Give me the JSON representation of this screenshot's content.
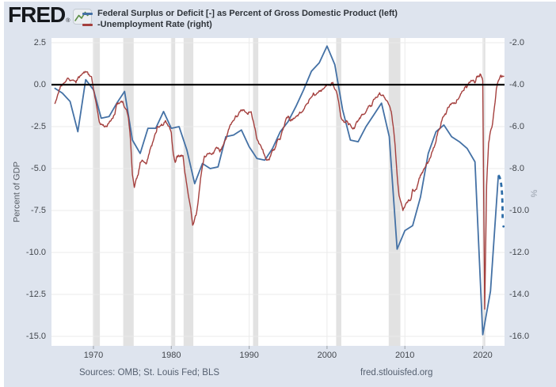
{
  "header": {
    "logo_text": "FRED",
    "logo_registered": "®",
    "logo_icon": "fred-sparkline-icon",
    "legend": [
      {
        "label": "Federal Surplus or Deficit [-] as Percent of Gross Domestic Product (left)",
        "color": "#4471a5"
      },
      {
        "label": "-Unemployment Rate (right)",
        "color": "#a43f3d"
      }
    ]
  },
  "footer": {
    "sources": "Sources: OMB; St. Louis Fed; BLS",
    "site": "fred.stlouisfed.org"
  },
  "chart_data": {
    "type": "line",
    "title": "",
    "legend_position": "top",
    "grid": true,
    "colors": {
      "background": "#dee4ee",
      "plot_background": "#ffffff",
      "recession_band": "#e2e2e2",
      "gridline": "#ebebeb",
      "axis_tick": "#9aa0a8",
      "zero_line": "#000000"
    },
    "x_axis": {
      "tick_labels": [
        "1970",
        "1980",
        "1990",
        "2000",
        "2010",
        "2020"
      ],
      "range_years": [
        1964.6,
        2022.8
      ]
    },
    "left_axis": {
      "label": "Percent of GDP",
      "tick_labels": [
        "2.5",
        "0.0",
        "-2.5",
        "-5.0",
        "-7.5",
        "-10.0",
        "-12.5",
        "-15.0"
      ],
      "range": [
        2.8,
        -15.6
      ]
    },
    "right_axis": {
      "label": "%",
      "tick_labels": [
        "-2.0",
        "-4.0",
        "-6.0",
        "-8.0",
        "-10.0",
        "-12.0",
        "-14.0",
        "-16.0"
      ],
      "range": [
        -1.8,
        -16.5
      ]
    },
    "zero_line_left_value": 0.0,
    "recession_bands_years": [
      [
        1969.92,
        1970.83
      ],
      [
        1973.83,
        1975.17
      ],
      [
        1980.0,
        1980.5
      ],
      [
        1981.58,
        1982.83
      ],
      [
        1990.5,
        1991.17
      ],
      [
        2001.17,
        2001.83
      ],
      [
        2007.92,
        2009.42
      ],
      [
        2020.08,
        2020.33
      ]
    ],
    "series": [
      {
        "name": "Federal Surplus or Deficit [-] as Percent of Gross Domestic Product",
        "axis": "left",
        "color": "#4471a5",
        "x_start": 1965,
        "x_step": 1,
        "values": [
          -0.2,
          -0.5,
          -1.0,
          -2.8,
          0.3,
          -0.3,
          -2.0,
          -1.9,
          -1.1,
          -0.4,
          -3.3,
          -4.1,
          -2.6,
          -2.6,
          -1.6,
          -2.6,
          -2.5,
          -3.9,
          -5.9,
          -4.7,
          -5.0,
          -4.9,
          -3.1,
          -3.0,
          -2.7,
          -3.7,
          -4.4,
          -4.5,
          -3.8,
          -2.8,
          -2.2,
          -1.3,
          -0.3,
          0.8,
          1.3,
          2.3,
          1.2,
          -1.5,
          -3.3,
          -3.4,
          -2.5,
          -1.8,
          -1.1,
          -3.1,
          -9.8,
          -8.7,
          -8.4,
          -6.7,
          -4.1,
          -2.8,
          -2.4,
          -3.1,
          -3.4,
          -3.8,
          -4.6,
          -14.9,
          -12.3,
          -5.4
        ]
      },
      {
        "name": "-Unemployment Rate",
        "axis": "right",
        "color": "#a43f3d",
        "x_start": 1965,
        "x_step": 0.25,
        "values": [
          -4.9,
          -4.7,
          -4.4,
          -4.1,
          -4.0,
          -3.9,
          -3.8,
          -3.7,
          -3.8,
          -3.8,
          -3.8,
          -3.9,
          -3.7,
          -3.6,
          -3.5,
          -3.4,
          -3.4,
          -3.4,
          -3.6,
          -3.6,
          -4.2,
          -4.7,
          -5.2,
          -5.8,
          -5.9,
          -5.9,
          -6.0,
          -6.0,
          -5.8,
          -5.7,
          -5.6,
          -5.4,
          -4.9,
          -4.9,
          -4.8,
          -4.8,
          -5.1,
          -5.2,
          -5.6,
          -6.6,
          -8.3,
          -8.9,
          -8.5,
          -8.3,
          -7.7,
          -7.6,
          -7.7,
          -7.8,
          -7.5,
          -7.1,
          -6.9,
          -6.6,
          -6.3,
          -6.0,
          -6.0,
          -5.9,
          -5.9,
          -5.7,
          -5.9,
          -6.0,
          -6.3,
          -7.3,
          -7.7,
          -7.4,
          -7.4,
          -7.4,
          -7.4,
          -8.2,
          -8.8,
          -9.4,
          -9.9,
          -10.7,
          -10.4,
          -10.1,
          -9.4,
          -8.5,
          -7.9,
          -7.4,
          -7.4,
          -7.3,
          -7.3,
          -7.3,
          -7.2,
          -7.0,
          -7.0,
          -7.2,
          -7.0,
          -6.8,
          -6.6,
          -6.3,
          -6.0,
          -5.8,
          -5.7,
          -5.5,
          -5.5,
          -5.3,
          -5.2,
          -5.2,
          -5.3,
          -5.4,
          -5.3,
          -5.3,
          -5.7,
          -6.1,
          -6.6,
          -6.8,
          -6.9,
          -7.1,
          -7.4,
          -7.6,
          -7.6,
          -7.4,
          -7.1,
          -7.1,
          -6.8,
          -6.6,
          -6.6,
          -6.2,
          -6.0,
          -5.6,
          -5.5,
          -5.7,
          -5.7,
          -5.6,
          -5.5,
          -5.5,
          -5.3,
          -5.3,
          -5.2,
          -5.0,
          -4.9,
          -4.7,
          -4.6,
          -4.4,
          -4.5,
          -4.4,
          -4.3,
          -4.3,
          -4.2,
          -4.1,
          -4.0,
          -4.0,
          -4.0,
          -3.9,
          -4.2,
          -4.4,
          -4.8,
          -5.5,
          -5.7,
          -5.8,
          -5.7,
          -5.9,
          -5.9,
          -6.1,
          -6.1,
          -5.8,
          -5.7,
          -5.6,
          -5.4,
          -5.4,
          -5.3,
          -5.1,
          -5.0,
          -5.0,
          -4.7,
          -4.6,
          -4.6,
          -4.4,
          -4.5,
          -4.5,
          -4.7,
          -4.8,
          -5.0,
          -5.3,
          -6.0,
          -6.9,
          -8.3,
          -9.3,
          -9.6,
          -10.0,
          -9.8,
          -9.6,
          -9.5,
          -9.5,
          -9.0,
          -9.1,
          -9.0,
          -8.6,
          -8.3,
          -8.2,
          -8.0,
          -7.8,
          -7.7,
          -7.5,
          -7.2,
          -7.0,
          -6.7,
          -6.2,
          -6.1,
          -5.7,
          -5.5,
          -5.4,
          -5.1,
          -5.0,
          -4.9,
          -4.9,
          -4.9,
          -4.7,
          -4.6,
          -4.4,
          -4.3,
          -4.1,
          -4.1,
          -3.9,
          -3.8,
          -3.8,
          -3.9,
          -3.6,
          -3.6,
          -3.5,
          -3.8,
          -14.7,
          -8.8,
          -6.8,
          -6.2,
          -5.9,
          -5.1,
          -4.2,
          -3.8,
          -3.6,
          -3.6,
          -3.6
        ]
      }
    ],
    "annotation": {
      "name": "projected-deficit-dashed",
      "style": "dashed",
      "color": "#2e6da8",
      "axis": "left",
      "from": [
        2022.0,
        -5.4
      ],
      "to": [
        2022.55,
        -7.95
      ],
      "dot": [
        2022.67,
        -8.45
      ]
    }
  }
}
